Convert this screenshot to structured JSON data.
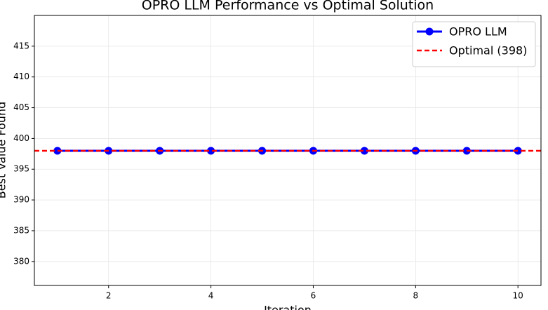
{
  "chart_data": {
    "type": "line",
    "title": "OPRO LLM Performance vs Optimal Solution",
    "x_label": "Iteration",
    "y_label": "Best Value Found",
    "x": [
      1,
      2,
      3,
      4,
      5,
      6,
      7,
      8,
      9,
      10
    ],
    "series": [
      {
        "name": "OPRO LLM",
        "color": "#0000ff",
        "values": [
          398,
          398,
          398,
          398,
          398,
          398,
          398,
          398,
          398,
          398
        ]
      }
    ],
    "hlines": [
      {
        "name": "Optimal (398)",
        "value": 398,
        "color": "#ff0000"
      }
    ],
    "xlim": [
      0.55,
      10.45
    ],
    "ylim": [
      376.1,
      420
    ],
    "xticks": [
      2,
      4,
      6,
      8,
      10
    ],
    "yticks": [
      380,
      385,
      390,
      395,
      400,
      405,
      410,
      415
    ],
    "grid": true,
    "legend": "upper right"
  }
}
